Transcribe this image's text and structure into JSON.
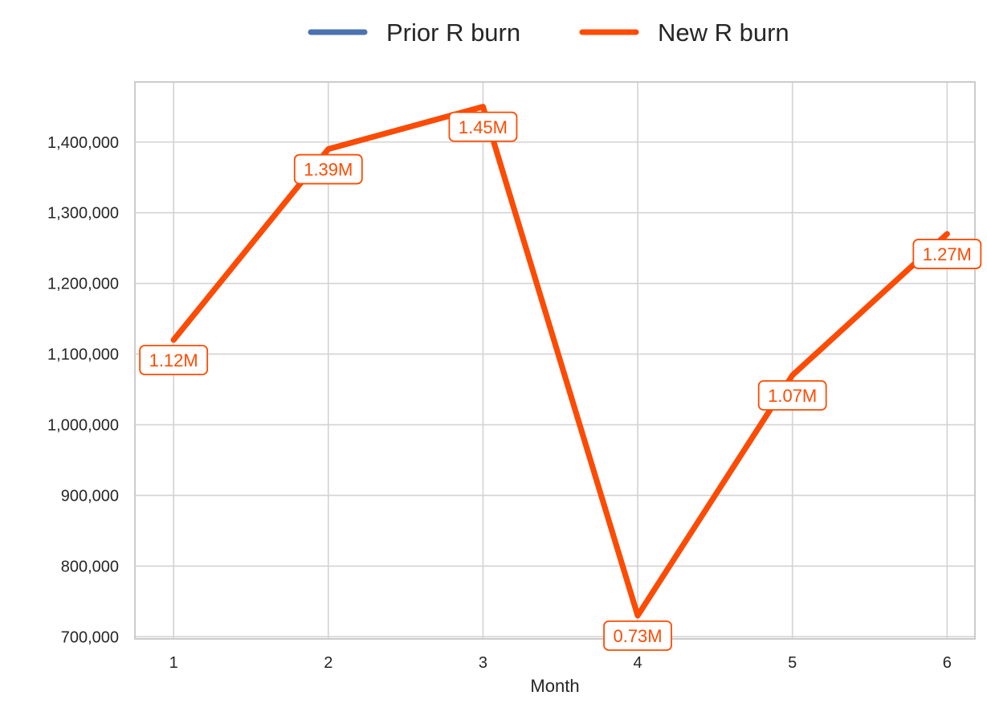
{
  "chart_data": {
    "type": "line",
    "x": [
      1,
      2,
      3,
      4,
      5,
      6
    ],
    "series": [
      {
        "name": "Prior R burn",
        "color": "#4c72b0",
        "values": [
          1120000,
          1390000,
          1450000,
          730000,
          1070000,
          1270000
        ]
      },
      {
        "name": "New R burn",
        "color": "#ff4b00",
        "values": [
          1120000,
          1390000,
          1450000,
          730000,
          1070000,
          1270000
        ]
      }
    ],
    "data_labels": [
      "1.12M",
      "1.39M",
      "1.45M",
      "0.73M",
      "1.07M",
      "1.27M"
    ],
    "xlabel": "Month",
    "ylabel": "",
    "xlim": [
      0.75,
      6.18
    ],
    "ylim": [
      697000,
      1485000
    ],
    "xticks": [
      1,
      2,
      3,
      4,
      5,
      6
    ],
    "xtick_labels": [
      "1",
      "2",
      "3",
      "4",
      "5",
      "6"
    ],
    "yticks": [
      700000,
      800000,
      900000,
      1000000,
      1100000,
      1200000,
      1300000,
      1400000
    ],
    "ytick_labels": [
      "700,000",
      "800,000",
      "900,000",
      "1,000,000",
      "1,100,000",
      "1,200,000",
      "1,300,000",
      "1,400,000"
    ],
    "grid": true,
    "legend_position": "top-center",
    "colors": {
      "grid": "#d3d3d3",
      "spine": "#cccccc",
      "text": "#262626"
    }
  }
}
